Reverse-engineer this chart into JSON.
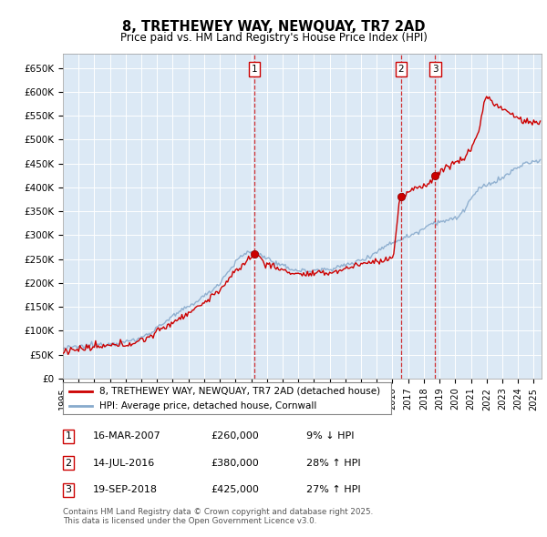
{
  "title": "8, TRETHEWEY WAY, NEWQUAY, TR7 2AD",
  "subtitle": "Price paid vs. HM Land Registry's House Price Index (HPI)",
  "bg_color": "#ffffff",
  "plot_bg_color": "#dce9f5",
  "grid_color": "#ffffff",
  "red_line_color": "#cc0000",
  "blue_line_color": "#88aacc",
  "ylim": [
    0,
    680000
  ],
  "xlim_start": 1995.0,
  "xlim_end": 2025.5,
  "yticks": [
    0,
    50000,
    100000,
    150000,
    200000,
    250000,
    300000,
    350000,
    400000,
    450000,
    500000,
    550000,
    600000,
    650000
  ],
  "ytick_labels": [
    "£0",
    "£50K",
    "£100K",
    "£150K",
    "£200K",
    "£250K",
    "£300K",
    "£350K",
    "£400K",
    "£450K",
    "£500K",
    "£550K",
    "£600K",
    "£650K"
  ],
  "sale_dates": [
    2007.21,
    2016.54,
    2018.72
  ],
  "sale_prices": [
    260000,
    380000,
    425000
  ],
  "sale_labels": [
    "1",
    "2",
    "3"
  ],
  "legend_red": "8, TRETHEWEY WAY, NEWQUAY, TR7 2AD (detached house)",
  "legend_blue": "HPI: Average price, detached house, Cornwall",
  "table_rows": [
    {
      "num": "1",
      "date": "16-MAR-2007",
      "price": "£260,000",
      "change": "9% ↓ HPI"
    },
    {
      "num": "2",
      "date": "14-JUL-2016",
      "price": "£380,000",
      "change": "28% ↑ HPI"
    },
    {
      "num": "3",
      "date": "19-SEP-2018",
      "price": "£425,000",
      "change": "27% ↑ HPI"
    }
  ],
  "footnote": "Contains HM Land Registry data © Crown copyright and database right 2025.\nThis data is licensed under the Open Government Licence v3.0."
}
